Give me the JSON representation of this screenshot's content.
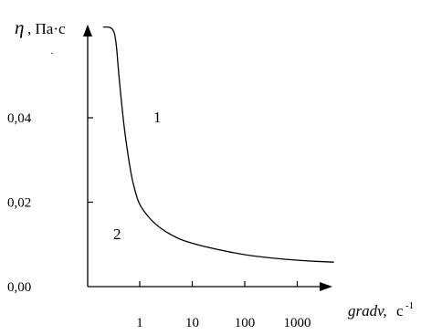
{
  "chart_data": {
    "type": "line",
    "ylabel": {
      "symbol": "η",
      "unit": ", Па·с"
    },
    "xlabel": {
      "name": "gradv,",
      "unit": "c",
      "exponent": "-1"
    },
    "y_ticks": [
      "0,04",
      "0,02",
      "0,00"
    ],
    "y_tick_values": [
      0.04,
      0.02,
      0.0
    ],
    "x_ticks": [
      "1",
      "10",
      "100",
      "1000"
    ],
    "x_tick_values": [
      1,
      10,
      100,
      1000
    ],
    "x_scale": "log",
    "grid": false,
    "annotations": [
      "1",
      "2"
    ],
    "stray_mark": "·",
    "series": [
      {
        "x": [
          0.2,
          0.3,
          0.35,
          0.4,
          0.5,
          0.6,
          0.7,
          0.8,
          1,
          2,
          5,
          10,
          30,
          100,
          300,
          1000,
          5000
        ],
        "y": [
          0.0615,
          0.0615,
          0.059,
          0.05,
          0.038,
          0.031,
          0.026,
          0.023,
          0.019,
          0.0145,
          0.0115,
          0.0102,
          0.0088,
          0.0075,
          0.0068,
          0.0062,
          0.0058
        ]
      }
    ]
  }
}
